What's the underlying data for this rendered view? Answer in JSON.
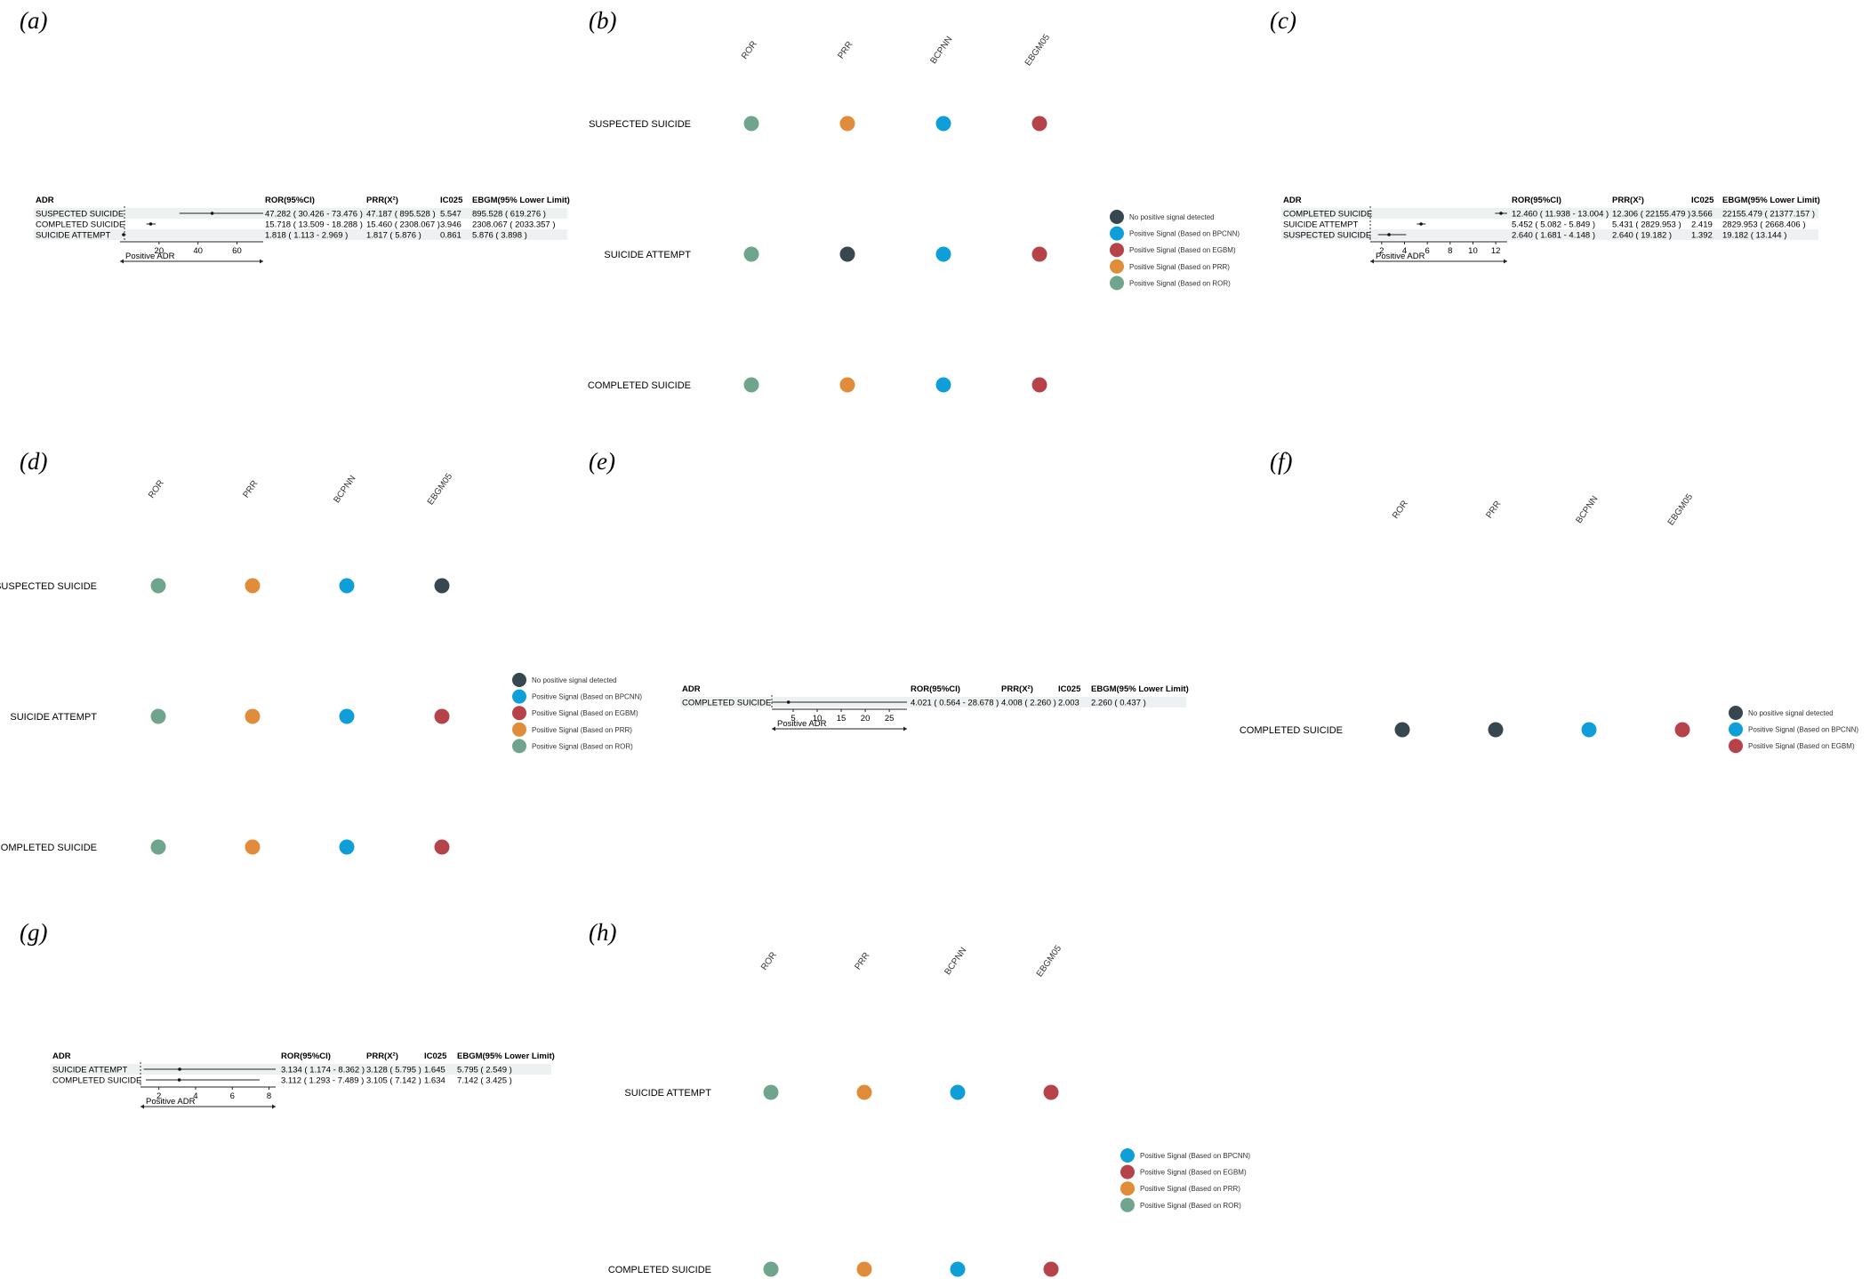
{
  "colors": {
    "none": "#37474f",
    "bcpnn": "#0e9fd8",
    "egbm": "#b6434a",
    "prr": "#e08c3a",
    "ror": "#6fa58c",
    "row_shade": "#eef1f1"
  },
  "legend_labels": {
    "none": "No positive signal detected",
    "bcpnn": "Positive Signal (Based on BPCNN)",
    "egbm": "Positive Signal (Based on EGBM)",
    "prr": "Positive Signal (Based on PRR)",
    "ror": "Positive Signal (Based on ROR)"
  },
  "forest_headers": [
    "ADR",
    "ROR(95%CI)",
    "PRR(X²)",
    "IC025",
    "EBGM(95% Lower Limit)"
  ],
  "forest_footer": "Positive ADR",
  "dot_methods": [
    "ROR",
    "PRR",
    "BCPNN",
    "EBGM05"
  ],
  "chart_data": [
    {
      "panel": "(a)",
      "type": "forest",
      "rows": [
        {
          "adr": "SUSPECTED SUICIDE",
          "ror": 47.282,
          "lo": 30.426,
          "hi": 73.476,
          "ror_text": "47.282 ( 30.426 - 73.476 )",
          "prr_text": "47.187 ( 895.528 )",
          "ic025": "5.547",
          "ebgm_text": "895.528 ( 619.276 )"
        },
        {
          "adr": "COMPLETED SUICIDE",
          "ror": 15.718,
          "lo": 13.509,
          "hi": 18.288,
          "ror_text": "15.718 ( 13.509 - 18.288 )",
          "prr_text": "15.460 ( 2308.067 )",
          "ic025": "3.946",
          "ebgm_text": "2308.067 ( 2033.357 )"
        },
        {
          "adr": "SUICIDE ATTEMPT",
          "ror": 1.818,
          "lo": 1.113,
          "hi": 2.969,
          "ror_text": "1.818 ( 1.113 - 2.969 )",
          "prr_text": "1.817 ( 5.876 )",
          "ic025": "0.861",
          "ebgm_text": "5.876 ( 3.898 )"
        }
      ],
      "xlim": [
        0,
        73.476
      ],
      "ticks": [
        20,
        40,
        60
      ]
    },
    {
      "panel": "(b)",
      "type": "signal-dots",
      "rows": [
        {
          "adr": "SUSPECTED SUICIDE",
          "signals": [
            "ror",
            "prr",
            "bcpnn",
            "egbm"
          ]
        },
        {
          "adr": "SUICIDE ATTEMPT",
          "signals": [
            "ror",
            "none",
            "bcpnn",
            "egbm"
          ]
        },
        {
          "adr": "COMPLETED SUICIDE",
          "signals": [
            "ror",
            "prr",
            "bcpnn",
            "egbm"
          ]
        }
      ],
      "legend": [
        "none",
        "bcpnn",
        "egbm",
        "prr",
        "ror"
      ]
    },
    {
      "panel": "(c)",
      "type": "forest",
      "rows": [
        {
          "adr": "COMPLETED SUICIDE",
          "ror": 12.46,
          "lo": 11.938,
          "hi": 13.004,
          "ror_text": "12.460 ( 11.938 - 13.004 )",
          "prr_text": "12.306 ( 22155.479 )",
          "ic025": "3.566",
          "ebgm_text": "22155.479 ( 21377.157 )"
        },
        {
          "adr": "SUICIDE ATTEMPT",
          "ror": 5.452,
          "lo": 5.082,
          "hi": 5.849,
          "ror_text": "5.452 ( 5.082 - 5.849 )",
          "prr_text": "5.431 ( 2829.953 )",
          "ic025": "2.419",
          "ebgm_text": "2829.953 ( 2668.406 )"
        },
        {
          "adr": "SUSPECTED SUICIDE",
          "ror": 2.64,
          "lo": 1.681,
          "hi": 4.148,
          "ror_text": "2.640 ( 1.681 - 4.148 )",
          "prr_text": "2.640 ( 19.182 )",
          "ic025": "1.392",
          "ebgm_text": "19.182 ( 13.144 )"
        }
      ],
      "xlim": [
        1,
        13.004
      ],
      "ticks": [
        2,
        4,
        6,
        8,
        10,
        12
      ]
    },
    {
      "panel": "(d)",
      "type": "signal-dots",
      "rows": [
        {
          "adr": "SUSPECTED SUICIDE",
          "signals": [
            "ror",
            "prr",
            "bcpnn",
            "none"
          ]
        },
        {
          "adr": "SUICIDE ATTEMPT",
          "signals": [
            "ror",
            "prr",
            "bcpnn",
            "egbm"
          ]
        },
        {
          "adr": "COMPLETED SUICIDE",
          "signals": [
            "ror",
            "prr",
            "bcpnn",
            "egbm"
          ]
        }
      ],
      "legend": [
        "none",
        "bcpnn",
        "egbm",
        "prr",
        "ror"
      ]
    },
    {
      "panel": "(e)",
      "type": "forest",
      "rows": [
        {
          "adr": "COMPLETED SUICIDE",
          "ror": 4.021,
          "lo": 0.564,
          "hi": 28.678,
          "ror_text": "4.021 ( 0.564 - 28.678 )",
          "prr_text": "4.008 ( 2.260 )",
          "ic025": "2.003",
          "ebgm_text": "2.260 ( 0.437 )"
        }
      ],
      "xlim": [
        0.564,
        28.678
      ],
      "ticks": [
        5,
        10,
        15,
        20,
        25
      ]
    },
    {
      "panel": "(f)",
      "type": "signal-dots",
      "rows": [
        {
          "adr": "COMPLETED SUICIDE",
          "signals": [
            "none",
            "none",
            "bcpnn",
            "egbm"
          ]
        }
      ],
      "legend": [
        "none",
        "bcpnn",
        "egbm"
      ]
    },
    {
      "panel": "(g)",
      "type": "forest",
      "rows": [
        {
          "adr": "SUICIDE ATTEMPT",
          "ror": 3.134,
          "lo": 1.174,
          "hi": 8.362,
          "ror_text": "3.134 ( 1.174 - 8.362 )",
          "prr_text": "3.128 ( 5.795 )",
          "ic025": "1.645",
          "ebgm_text": "5.795 ( 2.549 )"
        },
        {
          "adr": "COMPLETED SUICIDE",
          "ror": 3.112,
          "lo": 1.293,
          "hi": 7.489,
          "ror_text": "3.112 ( 1.293 - 7.489 )",
          "prr_text": "3.105 ( 7.142 )",
          "ic025": "1.634",
          "ebgm_text": "7.142 ( 3.425 )"
        }
      ],
      "xlim": [
        1,
        8.362
      ],
      "ticks": [
        2,
        4,
        6,
        8
      ]
    },
    {
      "panel": "(h)",
      "type": "signal-dots",
      "rows": [
        {
          "adr": "SUICIDE ATTEMPT",
          "signals": [
            "ror",
            "prr",
            "bcpnn",
            "egbm"
          ]
        },
        {
          "adr": "COMPLETED SUICIDE",
          "signals": [
            "ror",
            "prr",
            "bcpnn",
            "egbm"
          ]
        }
      ],
      "legend": [
        "bcpnn",
        "egbm",
        "prr",
        "ror"
      ]
    }
  ]
}
